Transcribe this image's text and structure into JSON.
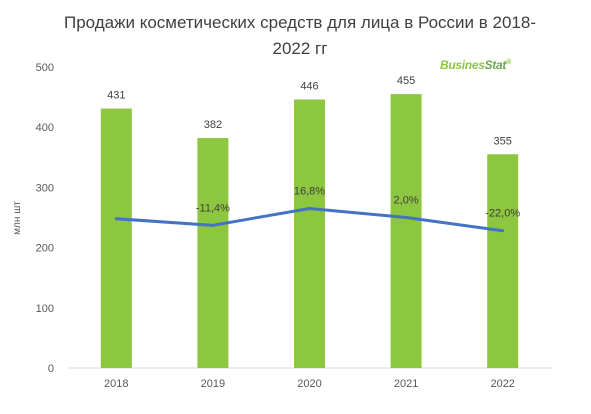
{
  "title": "Продажи косметических средств для лица в России в 2018-2022 гг",
  "logo": {
    "part1": "Busines",
    "part2": "Stat",
    "mark": "®"
  },
  "chart_data": {
    "type": "bar",
    "title": "Продажи косметических средств для лица в России в 2018-2022 гг",
    "categories": [
      "2018",
      "2019",
      "2020",
      "2021",
      "2022"
    ],
    "series": [
      {
        "values": [
          431,
          382,
          446,
          455,
          355
        ],
        "labels": [
          "431",
          "382",
          "446",
          "455",
          "355"
        ],
        "color": "#8dc63f",
        "kind": "bar"
      },
      {
        "values": [
          248,
          237,
          265,
          250,
          228
        ],
        "labels": [
          "",
          "-11,4%",
          "16,8%",
          "2,0%",
          "-22,0%"
        ],
        "color": "#4472c4",
        "kind": "line"
      }
    ],
    "ylabel": "млн шт",
    "xlabel": "",
    "ylim": [
      0,
      500
    ],
    "yticks": [
      "0",
      "100",
      "200",
      "300",
      "400",
      "500"
    ],
    "grid": false,
    "legend": "none"
  }
}
